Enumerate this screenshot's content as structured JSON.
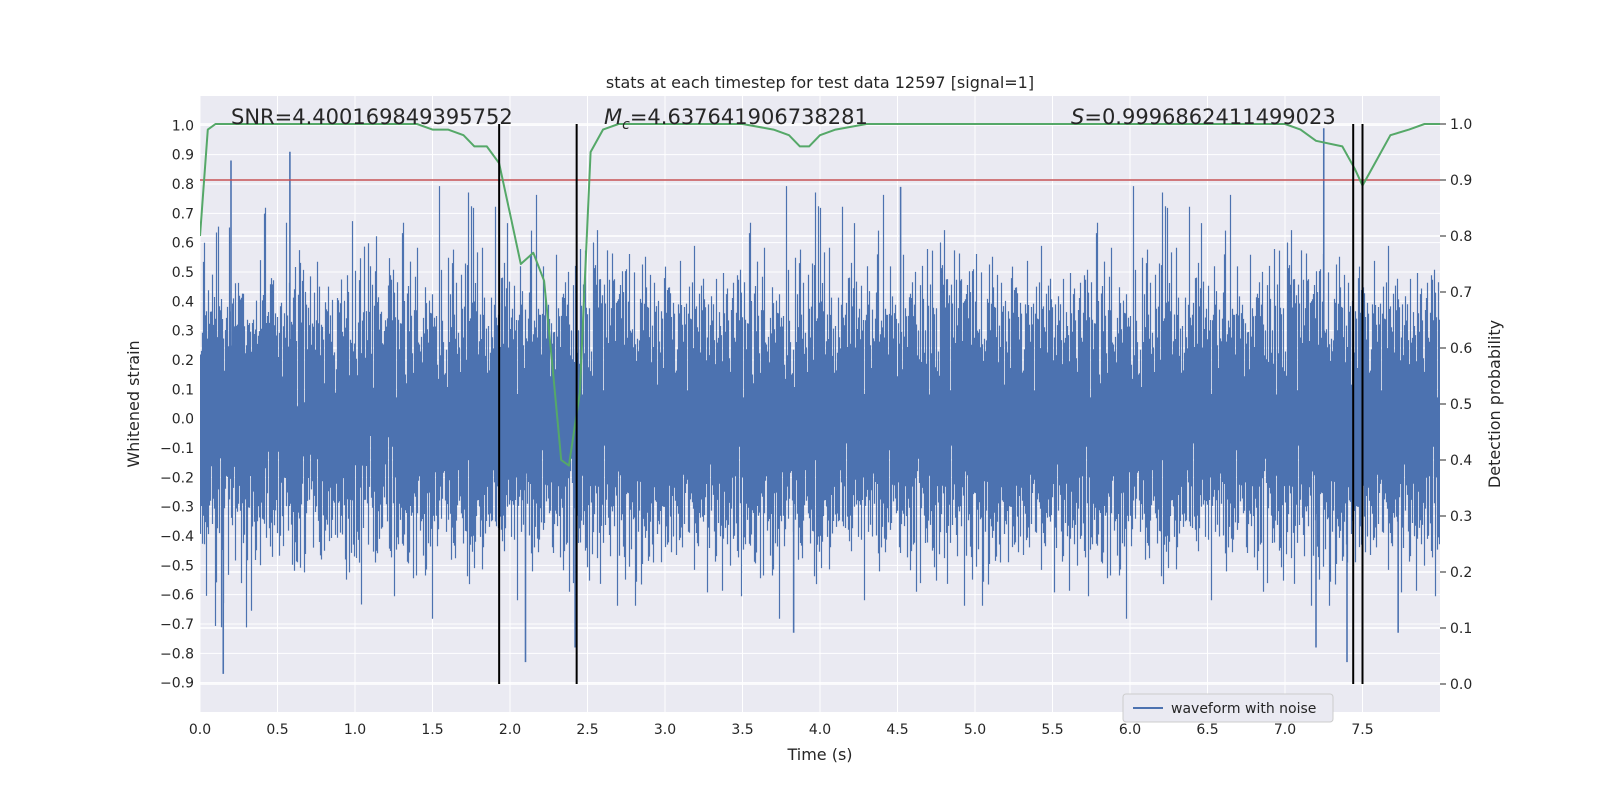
{
  "chart_data": {
    "type": "line",
    "title": "stats at each timestep for test data 12597 [signal=1]",
    "xlabel": "Time (s)",
    "ylabel": "Whitened strain",
    "y2label": "Detection probability",
    "xlim": [
      0.0,
      8.0
    ],
    "ylim": [
      -1.0,
      1.1
    ],
    "y2lim": [
      -0.05,
      1.05
    ],
    "x_ticks": [
      0.0,
      0.5,
      1.0,
      1.5,
      2.0,
      2.5,
      3.0,
      3.5,
      4.0,
      4.5,
      5.0,
      5.5,
      6.0,
      6.5,
      7.0,
      7.5
    ],
    "y_ticks": [
      -0.9,
      -0.8,
      -0.7,
      -0.6,
      -0.5,
      -0.4,
      -0.3,
      -0.2,
      -0.1,
      0.0,
      0.1,
      0.2,
      0.3,
      0.4,
      0.5,
      0.6,
      0.7,
      0.8,
      0.9,
      1.0
    ],
    "y2_ticks": [
      0.0,
      0.1,
      0.2,
      0.3,
      0.4,
      0.5,
      0.6,
      0.7,
      0.8,
      0.9,
      1.0
    ],
    "grid": true,
    "legend_placement": "lower-right",
    "background_color": "#eaeaf2",
    "series": [
      {
        "name": "waveform with noise",
        "axis": "left",
        "color": "#4c72b0",
        "kind": "noise",
        "sample_rate_hz": 2048,
        "typical_amplitude": 0.28,
        "peaks": [
          {
            "x": 0.15,
            "y": -0.87
          },
          {
            "x": 0.2,
            "y": 0.88
          },
          {
            "x": 0.58,
            "y": 0.91
          },
          {
            "x": 2.1,
            "y": -0.83
          },
          {
            "x": 2.42,
            "y": -0.78
          },
          {
            "x": 3.83,
            "y": -0.73
          },
          {
            "x": 4.52,
            "y": 0.79
          },
          {
            "x": 7.25,
            "y": 0.99
          },
          {
            "x": 7.2,
            "y": -0.78
          },
          {
            "x": 7.4,
            "y": -0.83
          },
          {
            "x": 7.73,
            "y": -0.73
          }
        ]
      },
      {
        "name": "",
        "axis": "right",
        "color": "#55a868",
        "x": [
          0.0,
          0.05,
          0.1,
          0.2,
          0.5,
          1.0,
          1.4,
          1.5,
          1.6,
          1.7,
          1.77,
          1.85,
          1.93,
          2.0,
          2.07,
          2.15,
          2.22,
          2.28,
          2.33,
          2.38,
          2.45,
          2.52,
          2.6,
          2.7,
          3.0,
          3.5,
          3.7,
          3.8,
          3.87,
          3.93,
          4.0,
          4.1,
          4.3,
          4.5,
          5.0,
          6.0,
          7.0,
          7.1,
          7.2,
          7.37,
          7.45,
          7.5,
          7.6,
          7.68,
          7.8,
          7.9,
          8.0
        ],
        "values": [
          0.8,
          0.99,
          1.0,
          1.0,
          1.0,
          1.0,
          1.0,
          0.99,
          0.99,
          0.98,
          0.96,
          0.96,
          0.93,
          0.84,
          0.75,
          0.77,
          0.72,
          0.55,
          0.4,
          0.39,
          0.52,
          0.95,
          0.99,
          1.0,
          1.0,
          1.0,
          0.99,
          0.98,
          0.96,
          0.96,
          0.98,
          0.99,
          1.0,
          1.0,
          1.0,
          1.0,
          1.0,
          0.99,
          0.97,
          0.96,
          0.92,
          0.89,
          0.94,
          0.98,
          0.99,
          1.0,
          1.0
        ]
      },
      {
        "name": "",
        "axis": "right",
        "color": "#c44e52",
        "kind": "threshold",
        "y": 0.9
      }
    ],
    "vertical_lines": [
      {
        "x": 1.93,
        "color": "#000000"
      },
      {
        "x": 2.43,
        "color": "#000000"
      },
      {
        "x": 7.44,
        "color": "#000000"
      },
      {
        "x": 7.5,
        "color": "#000000"
      }
    ],
    "annotations": [
      {
        "id": "snr",
        "text": "SNR=4.400169849395752"
      },
      {
        "id": "mc",
        "prefix": "M",
        "subscript": "c",
        "text": "=4.637641906738281"
      },
      {
        "id": "s",
        "prefix": "S",
        "text": "=0.9996862411499023"
      }
    ]
  }
}
